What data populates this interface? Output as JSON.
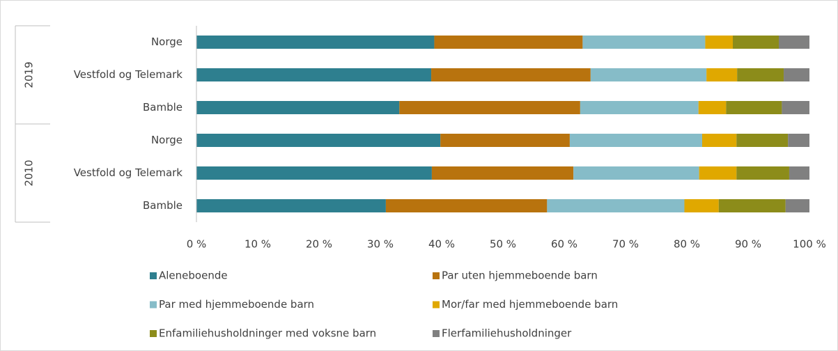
{
  "chart_data": {
    "type": "stacked_bar_horizontal",
    "groups": [
      {
        "name": "2019",
        "categories": [
          "Norge",
          "Vestfold og Telemark",
          "Bamble"
        ]
      },
      {
        "name": "2010",
        "categories": [
          "Norge",
          "Vestfold og Telemark",
          "Bamble"
        ]
      }
    ],
    "series": [
      {
        "name": "Aleneboende",
        "color": "#2e7f8f",
        "values": [
          38.8,
          38.3,
          33.1,
          39.8,
          38.4,
          30.9
        ]
      },
      {
        "name": "Par uten hjemmeboende barn",
        "color": "#b8730e",
        "values": [
          24.2,
          26.0,
          29.5,
          21.1,
          23.1,
          26.3
        ]
      },
      {
        "name": "Par med hjemmeboende barn",
        "color": "#86bcc8",
        "values": [
          20.0,
          18.9,
          19.3,
          21.6,
          20.5,
          22.4
        ]
      },
      {
        "name": "Mor/far med hjemmeboende barn",
        "color": "#e0a800",
        "values": [
          4.5,
          5.0,
          4.5,
          5.6,
          6.1,
          5.6
        ]
      },
      {
        "name": "Enfamiliehusholdninger med voksne barn",
        "color": "#8c8c1a",
        "values": [
          7.5,
          7.6,
          9.1,
          8.4,
          8.6,
          10.9
        ]
      },
      {
        "name": "Flerfamiliehusholdninger",
        "color": "#808080",
        "values": [
          5.0,
          4.2,
          4.5,
          3.5,
          3.3,
          3.9
        ]
      }
    ],
    "xlim": [
      0,
      100
    ],
    "xticks": [
      {
        "value": 0,
        "label": "0 %"
      },
      {
        "value": 10,
        "label": "10 %"
      },
      {
        "value": 20,
        "label": "20 %"
      },
      {
        "value": 30,
        "label": "30 %"
      },
      {
        "value": 40,
        "label": "40 %"
      },
      {
        "value": 50,
        "label": "50 %"
      },
      {
        "value": 60,
        "label": "60 %"
      },
      {
        "value": 70,
        "label": "70 %"
      },
      {
        "value": 80,
        "label": "80 %"
      },
      {
        "value": 90,
        "label": "90 %"
      },
      {
        "value": 100,
        "label": "100 %"
      }
    ],
    "legend": "bottom"
  }
}
